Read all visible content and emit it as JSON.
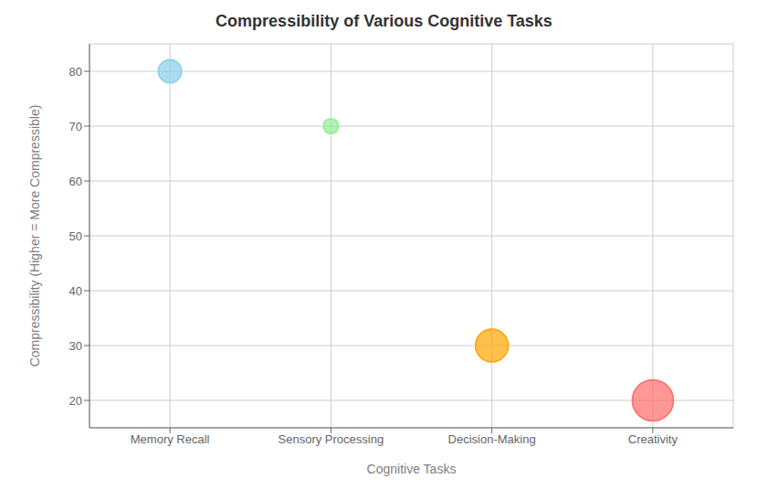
{
  "chart_data": {
    "type": "bubble",
    "title": "Compressibility of Various Cognitive Tasks",
    "xlabel": "Cognitive Tasks",
    "ylabel": "Compressibility (Higher = More Compressible)",
    "categories": [
      "Memory Recall",
      "Sensory Processing",
      "Decision-Making",
      "Creativity"
    ],
    "values": [
      80,
      70,
      30,
      20
    ],
    "sizes": [
      350,
      150,
      700,
      1100
    ],
    "colors": [
      "#87CEEB",
      "#90EE90",
      "#FFA500",
      "#FF6B6B"
    ],
    "ylim": [
      15,
      85
    ],
    "yticks": [
      20,
      30,
      40,
      50,
      60,
      70,
      80
    ],
    "grid": true
  }
}
